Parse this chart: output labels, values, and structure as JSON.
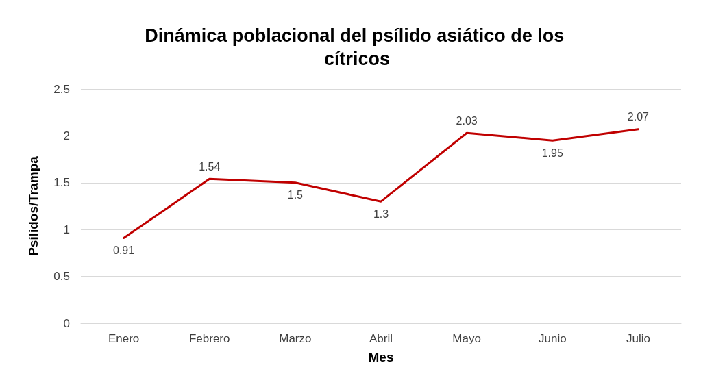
{
  "chart_data": {
    "type": "line",
    "title": "Dinámica poblacional del psílido asiático de los cítricos",
    "xlabel": "Mes",
    "ylabel": "Psílidos/Trampa",
    "categories": [
      "Enero",
      "Febrero",
      "Marzo",
      "Abril",
      "Mayo",
      "Junio",
      "Julio"
    ],
    "series": [
      {
        "color": "#c00000",
        "values": [
          0.91,
          1.54,
          1.5,
          1.3,
          2.03,
          1.95,
          2.07
        ]
      }
    ],
    "ylim": [
      0,
      2.5
    ],
    "yticks": [
      0,
      0.5,
      1,
      1.5,
      2,
      2.5
    ],
    "grid": "y",
    "data_labels": true,
    "marker": "none",
    "line_style": "solid"
  }
}
